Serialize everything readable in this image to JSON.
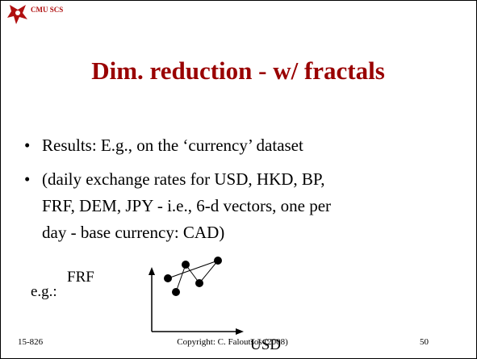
{
  "header": {
    "label": "CMU SCS"
  },
  "title": "Dim. reduction - w/ fractals",
  "bullets": [
    "Results: E.g., on the ‘currency’ dataset",
    [
      "(daily exchange rates for USD, HKD, BP,",
      "FRF, DEM, JPY - i.e., 6-d vectors, one per",
      "day - base currency: CAD)"
    ]
  ],
  "figure": {
    "prefix": "e.g.:",
    "y_label": "FRF",
    "x_label": "USD"
  },
  "footer": {
    "course": "15-826",
    "copyright": "Copyright: C. Faloutsos (2008)",
    "page": "50"
  }
}
